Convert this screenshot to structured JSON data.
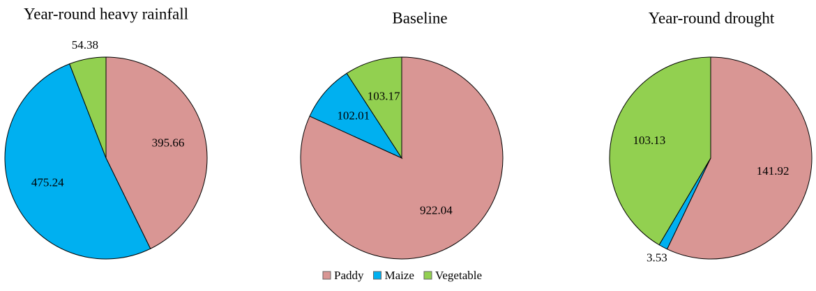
{
  "chart_data": [
    {
      "type": "pie",
      "title": "Year-round heavy rainfall",
      "values": [
        395.66,
        475.24,
        54.38
      ]
    },
    {
      "type": "pie",
      "title": "Baseline",
      "values": [
        922.04,
        102.01,
        103.17
      ]
    },
    {
      "type": "pie",
      "title": "Year-round drought",
      "values": [
        141.92,
        3.53,
        103.13
      ]
    }
  ],
  "legend": {
    "items": [
      {
        "name": "Paddy",
        "color": "#d99694"
      },
      {
        "name": "Maize",
        "color": "#00b0f0"
      },
      {
        "name": "Vegetable",
        "color": "#92d050"
      }
    ]
  }
}
